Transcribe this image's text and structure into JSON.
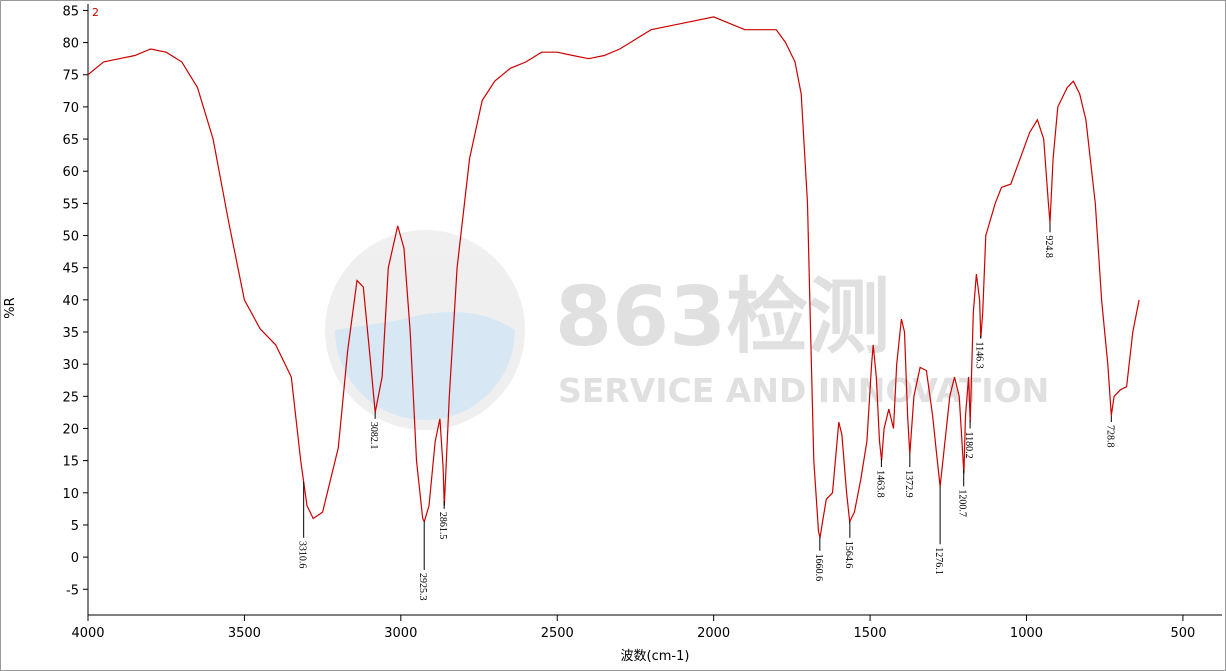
{
  "chart_data": {
    "type": "line",
    "corner_label": "2",
    "x_label": "波数(cm-1)",
    "y_label": "%R",
    "watermark": {
      "title": "863检测",
      "subtitle": "SERVICE AND INNOVATION"
    },
    "xlim": [
      4000,
      375
    ],
    "ylim": [
      -9,
      86
    ],
    "xticks": [
      4000,
      3500,
      3000,
      2500,
      2000,
      1500,
      1000,
      500
    ],
    "yticks": [
      -5,
      0,
      5,
      10,
      15,
      20,
      25,
      30,
      35,
      40,
      45,
      50,
      55,
      60,
      65,
      70,
      75,
      80,
      85
    ],
    "grid": false,
    "x": [
      4000,
      3950,
      3900,
      3850,
      3800,
      3750,
      3700,
      3650,
      3600,
      3550,
      3500,
      3450,
      3400,
      3350,
      3320,
      3300,
      3280,
      3250,
      3200,
      3170,
      3140,
      3120,
      3100,
      3082,
      3060,
      3040,
      3010,
      2990,
      2970,
      2950,
      2930,
      2925,
      2910,
      2890,
      2875,
      2865,
      2861,
      2845,
      2820,
      2780,
      2740,
      2700,
      2650,
      2600,
      2550,
      2500,
      2450,
      2400,
      2350,
      2300,
      2250,
      2200,
      2100,
      2000,
      1950,
      1900,
      1850,
      1800,
      1770,
      1740,
      1720,
      1700,
      1690,
      1680,
      1665,
      1660,
      1650,
      1640,
      1620,
      1600,
      1590,
      1575,
      1565,
      1550,
      1530,
      1510,
      1495,
      1490,
      1480,
      1470,
      1463,
      1455,
      1440,
      1425,
      1415,
      1400,
      1390,
      1380,
      1373,
      1360,
      1340,
      1320,
      1300,
      1285,
      1276,
      1265,
      1245,
      1230,
      1215,
      1200,
      1195,
      1185,
      1180,
      1170,
      1160,
      1150,
      1146,
      1140,
      1130,
      1100,
      1080,
      1050,
      1020,
      990,
      965,
      945,
      930,
      924.8,
      915,
      900,
      870,
      850,
      830,
      810,
      780,
      760,
      740,
      728.8,
      720,
      700,
      680,
      660,
      640
    ],
    "series": [
      {
        "name": "2",
        "color": "#cc0000",
        "values": [
          75,
          77,
          77.5,
          78,
          79,
          78.5,
          77,
          73,
          65,
          52,
          40,
          35.5,
          33,
          28,
          15,
          8,
          6,
          7,
          17,
          32,
          43,
          42,
          32,
          22.5,
          28,
          45,
          51.5,
          48,
          35,
          15,
          6,
          5.5,
          8,
          18,
          21.5,
          14,
          8,
          25,
          45,
          62,
          71,
          74,
          76,
          77,
          78.5,
          78.5,
          78,
          77.5,
          78,
          79,
          80.5,
          82,
          83,
          84,
          83,
          82,
          82,
          82,
          80,
          77,
          72,
          55,
          35,
          15,
          4,
          3,
          6,
          9,
          10,
          21,
          19,
          10,
          5.5,
          7,
          12,
          18,
          30,
          33,
          28,
          18,
          15,
          20,
          23,
          20,
          30,
          37,
          35,
          22,
          16,
          25,
          29.5,
          29,
          22,
          15,
          11,
          16,
          25,
          28,
          25,
          13,
          22,
          28,
          21,
          38,
          44,
          40,
          34,
          38,
          50,
          55,
          57.5,
          58,
          62,
          66,
          68,
          65,
          55,
          52,
          62,
          70,
          73,
          74,
          72,
          68,
          55,
          40,
          30,
          22,
          25,
          26,
          26.5,
          35,
          40
        ]
      }
    ],
    "annotations": [
      {
        "x": 3310.6,
        "y": 3,
        "label": "3310.6"
      },
      {
        "x": 3082.1,
        "y": 21.5,
        "label": "3082.1"
      },
      {
        "x": 2925.3,
        "y": -2,
        "label": "2925.3"
      },
      {
        "x": 2861.5,
        "y": 7.5,
        "label": "2861.5"
      },
      {
        "x": 1660.6,
        "y": 1,
        "label": "1660.6"
      },
      {
        "x": 1564.6,
        "y": 3,
        "label": "1564.6"
      },
      {
        "x": 1463.8,
        "y": 14,
        "label": "1463.8"
      },
      {
        "x": 1372.9,
        "y": 14,
        "label": "1372.9"
      },
      {
        "x": 1276.1,
        "y": 2,
        "label": "1276.1"
      },
      {
        "x": 1200.7,
        "y": 11,
        "label": "1200.7"
      },
      {
        "x": 1180.2,
        "y": 20,
        "label": "1180.2"
      },
      {
        "x": 1146.3,
        "y": 34,
        "label": "1146.3"
      },
      {
        "x": 924.8,
        "y": 50.5,
        "label": "924.8"
      },
      {
        "x": 728.8,
        "y": 21,
        "label": "728.8"
      }
    ]
  }
}
